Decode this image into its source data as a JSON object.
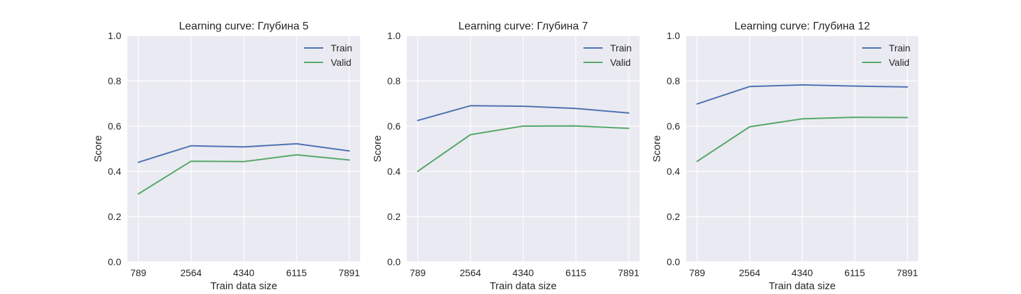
{
  "colors": {
    "train": "#4c72b0",
    "valid": "#55a868",
    "plot_background": "#eaeaf2",
    "grid": "#ffffff",
    "text": "#262626"
  },
  "chart_data": [
    {
      "type": "line",
      "title": "Learning curve: Глубина 5",
      "xlabel": "Train data size",
      "ylabel": "Score",
      "x": [
        789,
        2564,
        4340,
        6115,
        7891
      ],
      "x_tick_labels": [
        "789",
        "2564",
        "4340",
        "6115",
        "7891"
      ],
      "y_ticks": [
        0.0,
        0.2,
        0.4,
        0.6,
        0.8,
        1.0
      ],
      "y_tick_labels": [
        "0.0",
        "0.2",
        "0.4",
        "0.6",
        "0.8",
        "1.0"
      ],
      "ylim": [
        0,
        1
      ],
      "grid": true,
      "legend_position": "top-right",
      "series": [
        {
          "name": "Train",
          "values": [
            0.44,
            0.513,
            0.508,
            0.522,
            0.49
          ]
        },
        {
          "name": "Valid",
          "values": [
            0.3,
            0.445,
            0.443,
            0.473,
            0.45
          ]
        }
      ]
    },
    {
      "type": "line",
      "title": "Learning curve: Глубина 7",
      "xlabel": "Train data size",
      "ylabel": "Score",
      "x": [
        789,
        2564,
        4340,
        6115,
        7891
      ],
      "x_tick_labels": [
        "789",
        "2564",
        "4340",
        "6115",
        "7891"
      ],
      "y_ticks": [
        0.0,
        0.2,
        0.4,
        0.6,
        0.8,
        1.0
      ],
      "y_tick_labels": [
        "0.0",
        "0.2",
        "0.4",
        "0.6",
        "0.8",
        "1.0"
      ],
      "ylim": [
        0,
        1
      ],
      "grid": true,
      "legend_position": "top-right",
      "series": [
        {
          "name": "Train",
          "values": [
            0.625,
            0.69,
            0.688,
            0.678,
            0.658
          ]
        },
        {
          "name": "Valid",
          "values": [
            0.4,
            0.562,
            0.6,
            0.601,
            0.59
          ]
        }
      ]
    },
    {
      "type": "line",
      "title": "Learning curve: Глубина 12",
      "xlabel": "Train data size",
      "ylabel": "Score",
      "x": [
        789,
        2564,
        4340,
        6115,
        7891
      ],
      "x_tick_labels": [
        "789",
        "2564",
        "4340",
        "6115",
        "7891"
      ],
      "y_ticks": [
        0.0,
        0.2,
        0.4,
        0.6,
        0.8,
        1.0
      ],
      "y_tick_labels": [
        "0.0",
        "0.2",
        "0.4",
        "0.6",
        "0.8",
        "1.0"
      ],
      "ylim": [
        0,
        1
      ],
      "grid": true,
      "legend_position": "top-right",
      "series": [
        {
          "name": "Train",
          "values": [
            0.698,
            0.775,
            0.782,
            0.777,
            0.773
          ]
        },
        {
          "name": "Valid",
          "values": [
            0.444,
            0.597,
            0.632,
            0.639,
            0.638
          ]
        }
      ]
    }
  ]
}
